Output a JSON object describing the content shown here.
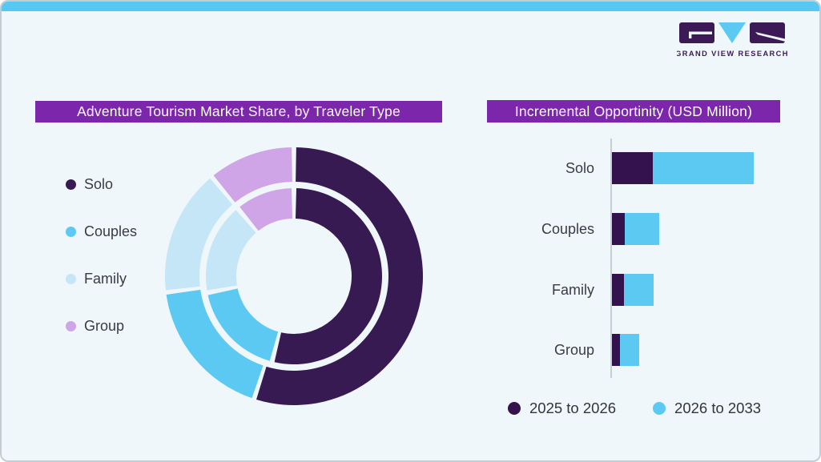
{
  "page": {
    "card_bg": "#f0f7fb",
    "top_strip_color": "#57c8f1",
    "border_color": "#c5cdd4",
    "title_bar_color": "#7b26ab",
    "text_color": "#3a3a46"
  },
  "logo": {
    "text": "GRAND VIEW RESEARCH",
    "dark_color": "#3b1a55",
    "blue_color": "#5bc9f2"
  },
  "donut_section": {
    "title": "Adventure Tourism Market Share, by Traveler Type"
  },
  "bar_section": {
    "title": "Incremental Opportinity (USD Million)"
  },
  "chart_data": [
    {
      "type": "pie",
      "variant": "double-ring-donut",
      "title": "Adventure Tourism Market Share, by Traveler Type",
      "categories": [
        "Solo",
        "Couples",
        "Family",
        "Group"
      ],
      "colors": [
        "#371A52",
        "#5BC9F2",
        "#C4E6F6",
        "#CFA5E8"
      ],
      "series": [
        {
          "name": "inner-ring",
          "values_pct": [
            54,
            18,
            17,
            11
          ]
        },
        {
          "name": "outer-ring",
          "values_pct": [
            55,
            18,
            16,
            11
          ]
        }
      ],
      "legend_position": "left",
      "note": "rings are unlabeled in the figure; shares estimated from arc angles, clockwise from 12 o'clock starting with Solo"
    },
    {
      "type": "bar",
      "variant": "horizontal-stacked",
      "title": "Incremental Opportinity (USD Million)",
      "categories": [
        "Solo",
        "Couples",
        "Family",
        "Group"
      ],
      "series": [
        {
          "name": "2025 to 2026",
          "color": "#33124E",
          "values": [
            51,
            16,
            15,
            10
          ]
        },
        {
          "name": "2026 to 2033",
          "color": "#5BC9F2",
          "values": [
            126,
            43,
            37,
            24
          ]
        }
      ],
      "value_axis": "unlabeled (USD Million); values estimated in relative units from bar lengths",
      "legend_position": "bottom"
    }
  ]
}
